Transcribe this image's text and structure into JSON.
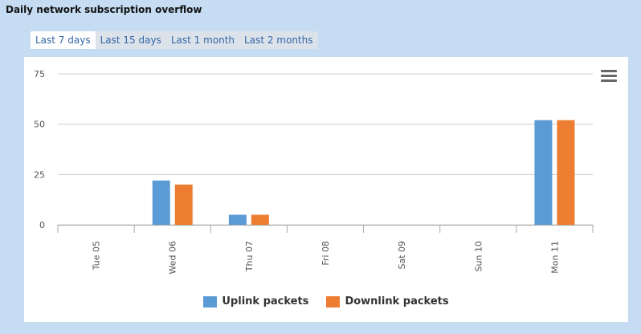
{
  "page": {
    "title": "Daily network subscription overflow",
    "tabs": [
      {
        "label": "Last 7 days",
        "active": true
      },
      {
        "label": "Last 15 days",
        "active": false
      },
      {
        "label": "Last 1 month",
        "active": false
      },
      {
        "label": "Last 2 months",
        "active": false
      }
    ]
  },
  "chart_data": {
    "type": "bar",
    "categories": [
      "Tue 05",
      "Wed 06",
      "Thu 07",
      "Fri 08",
      "Sat 09",
      "Sun 10",
      "Mon 11"
    ],
    "series": [
      {
        "name": "Uplink packets",
        "color": "#5b9bd5",
        "values": [
          0,
          22,
          5,
          0,
          0,
          0,
          52
        ]
      },
      {
        "name": "Downlink packets",
        "color": "#ed7d31",
        "values": [
          0,
          20,
          5,
          0,
          0,
          0,
          52
        ]
      }
    ],
    "ylim": [
      0,
      75
    ],
    "yticks": [
      0,
      25,
      50,
      75
    ],
    "grid": true,
    "legend": "bottom"
  }
}
